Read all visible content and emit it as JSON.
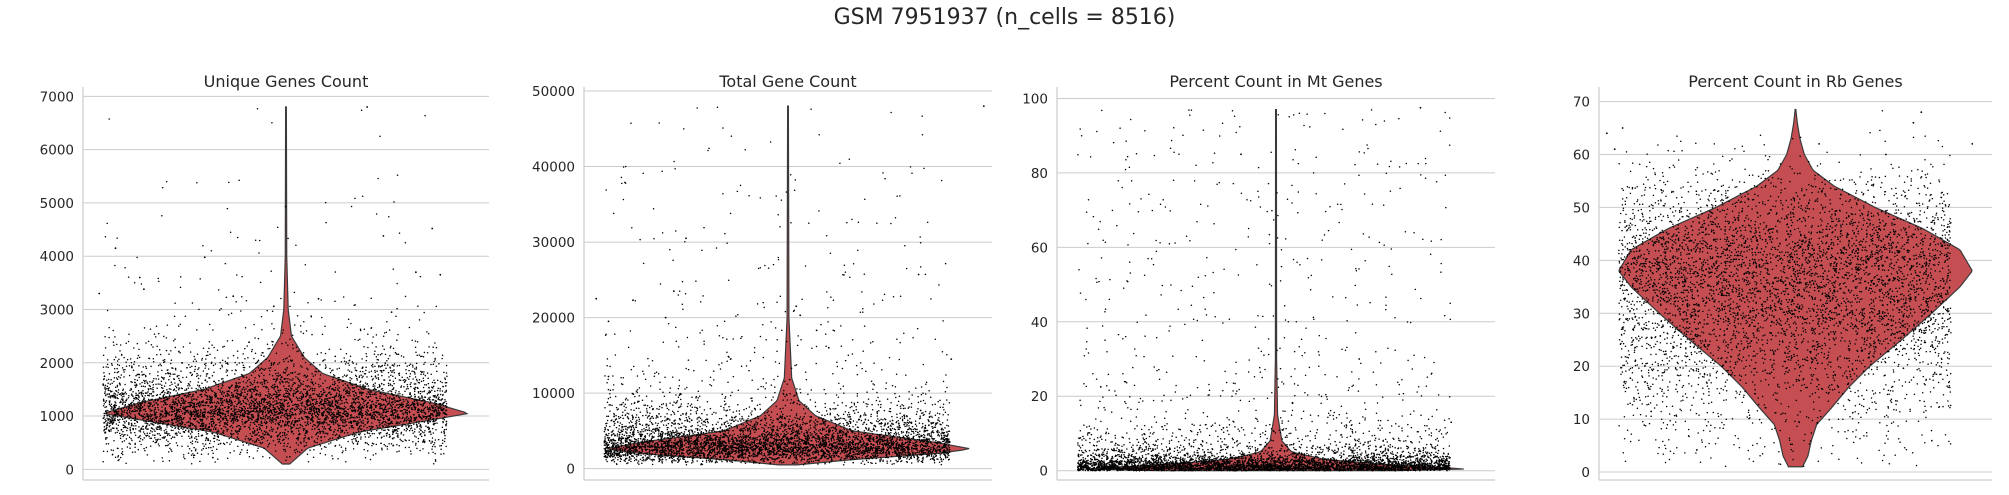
{
  "title": "GSM 7951937 (n_cells = 8516)",
  "colors": {
    "violin": "#c44e52",
    "violin_edge": "#3a3a3a",
    "points": "#000000",
    "grid": "#cccccc"
  },
  "chart_data": [
    {
      "type": "violin",
      "title": "Unique Genes Count",
      "ylim": [
        -200,
        7100
      ],
      "yticks": [
        "0",
        "1000",
        "2000",
        "3000",
        "4000",
        "5000",
        "6000",
        "7000"
      ],
      "n_points": 8516,
      "jitter_points": true,
      "median": 1050,
      "max": 6800,
      "min": 100,
      "density_profile": [
        [
          100,
          0.02
        ],
        [
          400,
          0.12
        ],
        [
          700,
          0.4
        ],
        [
          900,
          0.75
        ],
        [
          1050,
          1.0
        ],
        [
          1250,
          0.8
        ],
        [
          1500,
          0.45
        ],
        [
          1800,
          0.2
        ],
        [
          2100,
          0.1
        ],
        [
          2500,
          0.03
        ],
        [
          3000,
          0.012
        ],
        [
          4000,
          0.004
        ],
        [
          6800,
          0.002
        ]
      ],
      "outliers": [
        [
          0.7,
          6800
        ],
        [
          0.08,
          4150
        ],
        [
          0.3,
          3980
        ],
        [
          0.74,
          4380
        ],
        [
          0.86,
          4520
        ],
        [
          0.82,
          3700
        ],
        [
          0.88,
          3650
        ],
        [
          0.14,
          3600
        ],
        [
          0.15,
          3380
        ],
        [
          0.04,
          3300
        ],
        [
          0.37,
          3250
        ],
        [
          0.58,
          3200
        ],
        [
          0.47,
          3060
        ],
        [
          0.76,
          2950
        ]
      ]
    },
    {
      "type": "violin",
      "title": "Total Gene Count",
      "ylim": [
        -1500,
        50000
      ],
      "yticks": [
        "0",
        "10000",
        "20000",
        "30000",
        "40000",
        "50000"
      ],
      "n_points": 8516,
      "jitter_points": true,
      "median": 2600,
      "max": 48000,
      "min": 500,
      "density_profile": [
        [
          500,
          0.05
        ],
        [
          1200,
          0.35
        ],
        [
          2000,
          0.8
        ],
        [
          2600,
          1.0
        ],
        [
          3500,
          0.8
        ],
        [
          5000,
          0.35
        ],
        [
          7000,
          0.15
        ],
        [
          9000,
          0.06
        ],
        [
          12000,
          0.02
        ],
        [
          20000,
          0.005
        ],
        [
          48000,
          0.002
        ]
      ],
      "outliers": [
        [
          0.98,
          48000
        ],
        [
          0.25,
          30500
        ],
        [
          0.03,
          22500
        ],
        [
          0.06,
          19500
        ],
        [
          0.2,
          20000
        ],
        [
          0.12,
          22300
        ],
        [
          0.82,
          25700
        ],
        [
          0.22,
          23500
        ],
        [
          0.52,
          21500
        ],
        [
          0.53,
          20300
        ],
        [
          0.57,
          18300
        ],
        [
          0.6,
          16000
        ],
        [
          0.06,
          12200
        ],
        [
          0.9,
          14500
        ]
      ]
    },
    {
      "type": "violin",
      "title": "Percent Count in Mt Genes",
      "ylim": [
        -2.5,
        102
      ],
      "yticks": [
        "0",
        "20",
        "40",
        "60",
        "80",
        "100"
      ],
      "n_points": 8516,
      "jitter_points": true,
      "median": 0.8,
      "max": 97,
      "min": 0,
      "density_profile": [
        [
          0,
          0.6
        ],
        [
          0.5,
          1.0
        ],
        [
          1.5,
          0.6
        ],
        [
          3,
          0.25
        ],
        [
          5,
          0.08
        ],
        [
          8,
          0.03
        ],
        [
          15,
          0.008
        ],
        [
          30,
          0.003
        ],
        [
          97,
          0.002
        ]
      ],
      "outliers": [
        [
          0.83,
          97.5
        ],
        [
          0.42,
          85
        ],
        [
          0.69,
          30
        ],
        [
          0.1,
          22.5
        ],
        [
          0.38,
          11.5
        ],
        [
          0.9,
          13
        ],
        [
          0.24,
          11.8
        ]
      ]
    },
    {
      "type": "violin",
      "title": "Percent Count in Rb Genes",
      "ylim": [
        -1.5,
        72
      ],
      "yticks": [
        "0",
        "10",
        "20",
        "30",
        "40",
        "50",
        "60",
        "70"
      ],
      "n_points": 8516,
      "jitter_points": true,
      "median": 38,
      "max": 68.5,
      "min": 1,
      "density_profile": [
        [
          1,
          0.04
        ],
        [
          3,
          0.07
        ],
        [
          6,
          0.09
        ],
        [
          9,
          0.12
        ],
        [
          12,
          0.2
        ],
        [
          16,
          0.3
        ],
        [
          20,
          0.42
        ],
        [
          25,
          0.6
        ],
        [
          30,
          0.77
        ],
        [
          35,
          0.93
        ],
        [
          38,
          1.0
        ],
        [
          42,
          0.93
        ],
        [
          46,
          0.72
        ],
        [
          50,
          0.45
        ],
        [
          54,
          0.22
        ],
        [
          57,
          0.1
        ],
        [
          60,
          0.05
        ],
        [
          63,
          0.025
        ],
        [
          66,
          0.01
        ],
        [
          68.5,
          0.002
        ]
      ],
      "outliers": [
        [
          0.02,
          64
        ],
        [
          0.06,
          65
        ],
        [
          0.04,
          61
        ],
        [
          0.82,
          68
        ],
        [
          0.8,
          66
        ],
        [
          0.95,
          62
        ],
        [
          0.56,
          62
        ],
        [
          0.73,
          60
        ]
      ]
    }
  ]
}
